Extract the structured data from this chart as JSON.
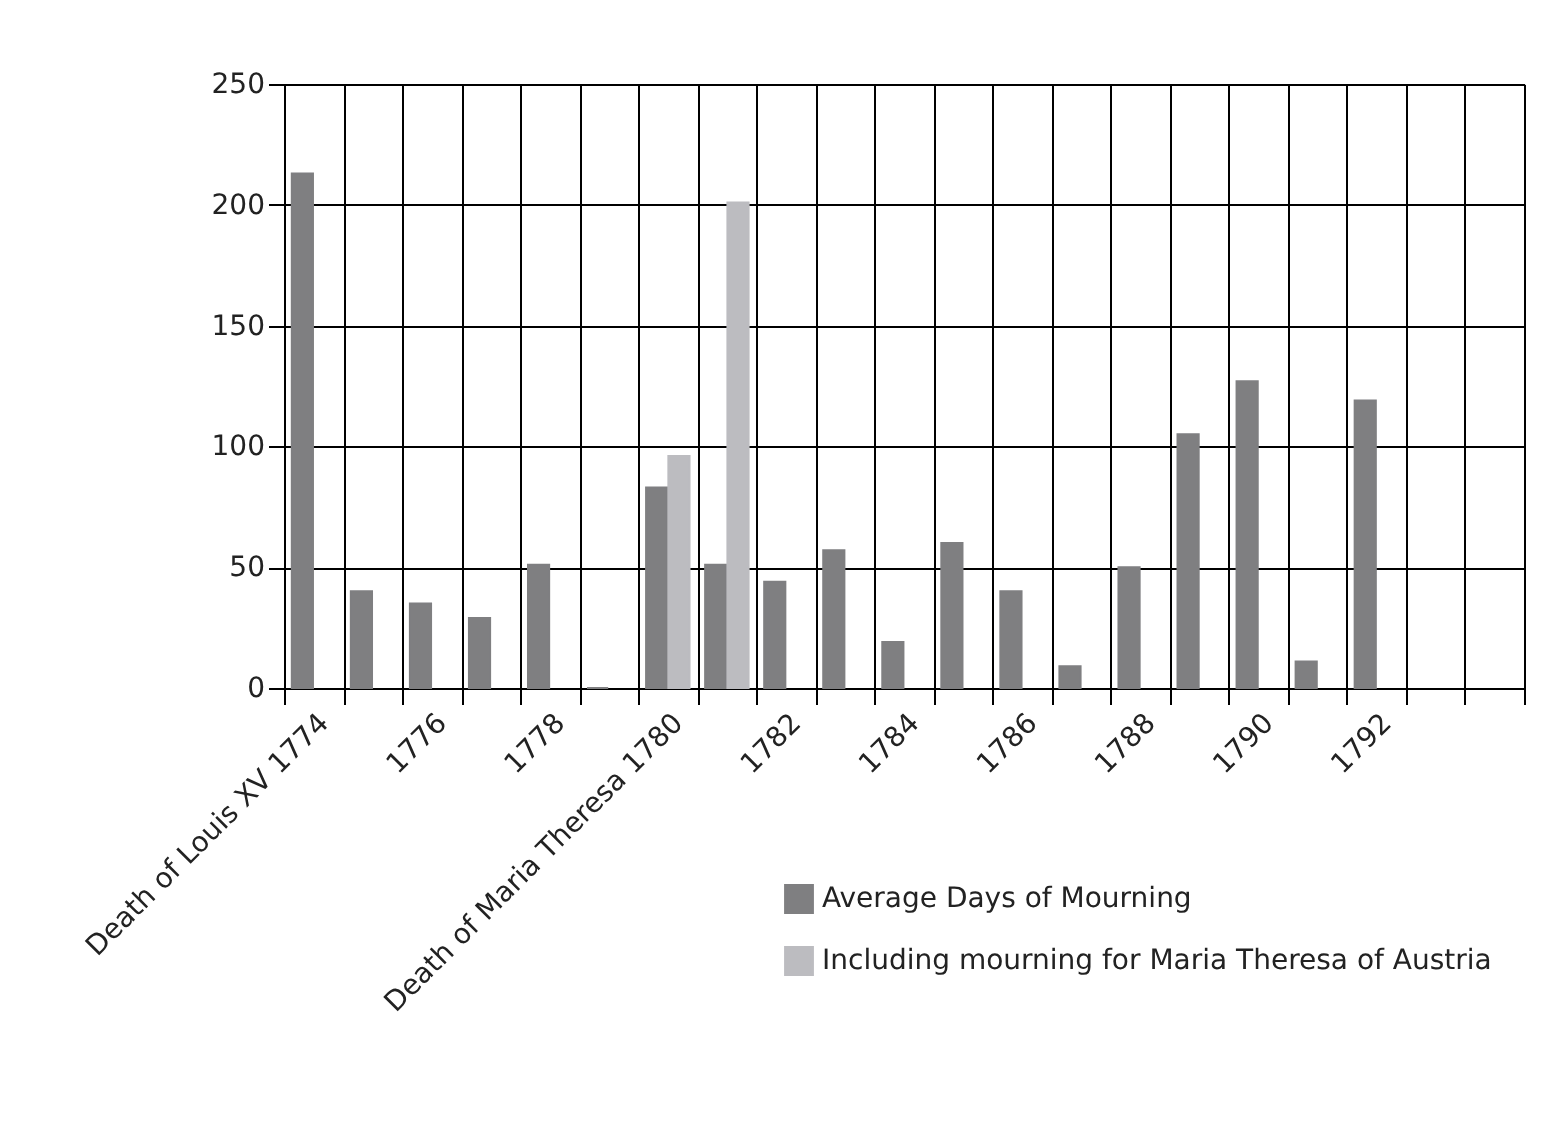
{
  "chart_data": {
    "type": "bar",
    "categories": [
      "Death of Louis XV 1774",
      null,
      "1776",
      null,
      "1778",
      null,
      "Death of Maria Theresa 1780",
      null,
      "1782",
      null,
      "1784",
      null,
      "1786",
      null,
      "1788",
      null,
      "1790",
      null,
      "1792",
      null,
      null
    ],
    "series": [
      {
        "name": "Average Days of Mourning",
        "color": "#7f7f81",
        "values": [
          213,
          40,
          35,
          29,
          51,
          0,
          83,
          51,
          44,
          57,
          19,
          60,
          40,
          9,
          50,
          105,
          127,
          11,
          119,
          null,
          null
        ]
      },
      {
        "name": "Including mourning for Maria Theresa of Austria",
        "color": "#bcbcc0",
        "values": [
          null,
          null,
          null,
          null,
          null,
          null,
          96,
          201,
          null,
          null,
          null,
          null,
          null,
          null,
          null,
          null,
          null,
          null,
          null,
          null,
          null
        ]
      }
    ],
    "ylim": [
      0,
      250
    ],
    "yticks": [
      0,
      50,
      100,
      150,
      200,
      250
    ],
    "grid": true,
    "legend": "bottom right"
  }
}
